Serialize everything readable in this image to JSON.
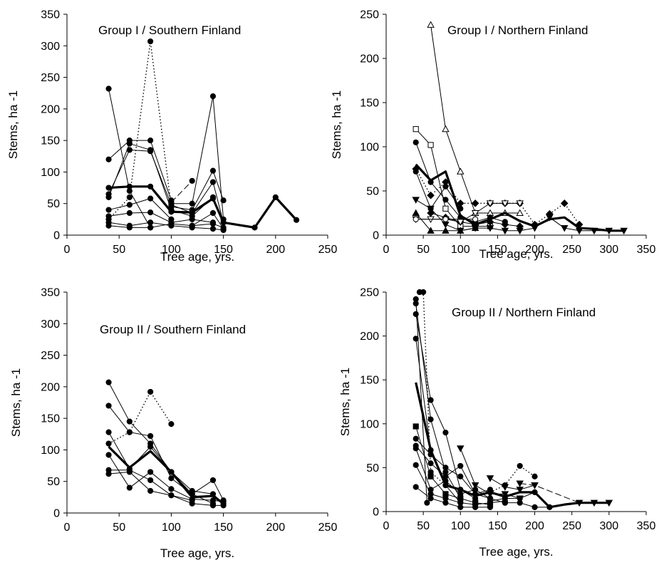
{
  "chart_data": [
    {
      "type": "line",
      "title": "Group I / Southern Finland",
      "xlabel": "Tree age, yrs.",
      "ylabel": "Stems, ha -1",
      "xlim": [
        0,
        250
      ],
      "ylim": [
        0,
        350
      ],
      "xticks": [
        0,
        50,
        100,
        150,
        200,
        250
      ],
      "yticks": [
        0,
        50,
        100,
        150,
        200,
        250,
        300,
        350
      ],
      "grid": false,
      "series": [
        {
          "style": "thin",
          "marker": "filled-circle",
          "x": [
            40,
            60,
            80
          ],
          "y": [
            232,
            70,
            12
          ]
        },
        {
          "style": "thin",
          "marker": "filled-circle",
          "x": [
            40,
            60,
            80,
            100
          ],
          "y": [
            120,
            150,
            150,
            55
          ]
        },
        {
          "style": "thin",
          "marker": "filled-circle",
          "x": [
            40,
            60,
            80,
            100,
            120
          ],
          "y": [
            65,
            135,
            133,
            48,
            35
          ]
        },
        {
          "style": "thin",
          "marker": "filled-circle",
          "x": [
            40,
            60,
            80,
            100,
            120,
            140
          ],
          "y": [
            60,
            145,
            135,
            40,
            30,
            60
          ]
        },
        {
          "style": "dotted",
          "marker": "filled-circle",
          "x": [
            40,
            60,
            80,
            100
          ],
          "y": [
            25,
            60,
            307,
            45
          ]
        },
        {
          "style": "thin",
          "marker": "filled-circle",
          "x": [
            40,
            60,
            80,
            100
          ],
          "y": [
            40,
            48,
            58,
            25
          ]
        },
        {
          "style": "thin",
          "marker": "filled-circle",
          "x": [
            40,
            60,
            80,
            100,
            120,
            140
          ],
          "y": [
            30,
            35,
            36,
            20,
            25,
            20
          ]
        },
        {
          "style": "thin",
          "marker": "filled-circle",
          "x": [
            40,
            60,
            80,
            100,
            120,
            140,
            150
          ],
          "y": [
            20,
            15,
            20,
            15,
            12,
            10,
            8
          ]
        },
        {
          "style": "thin",
          "marker": "filled-circle",
          "x": [
            40,
            60,
            80,
            100,
            120,
            140,
            150
          ],
          "y": [
            15,
            12,
            12,
            18,
            15,
            18,
            12
          ]
        },
        {
          "style": "thin",
          "marker": "filled-circle",
          "x": [
            100,
            120,
            140,
            150
          ],
          "y": [
            50,
            50,
            220,
            25
          ]
        },
        {
          "style": "thin",
          "marker": "filled-circle",
          "x": [
            100,
            120,
            140,
            150
          ],
          "y": [
            45,
            40,
            102,
            55
          ]
        },
        {
          "style": "thin",
          "marker": "filled-circle",
          "x": [
            120,
            140,
            150
          ],
          "y": [
            35,
            84,
            20
          ]
        },
        {
          "style": "thin",
          "marker": "filled-circle",
          "x": [
            120,
            140,
            150
          ],
          "y": [
            15,
            35,
            10
          ]
        },
        {
          "style": "dashed",
          "marker": "filled-circle",
          "x": [
            100,
            120
          ],
          "y": [
            52,
            86
          ]
        },
        {
          "style": "mean",
          "marker": "filled-circle",
          "x": [
            40,
            60,
            80,
            100,
            120,
            140,
            150,
            180,
            200,
            220
          ],
          "y": [
            75,
            77,
            77,
            37,
            36,
            58,
            20,
            12,
            60,
            24
          ]
        }
      ]
    },
    {
      "type": "line",
      "title": "Group I / Northern Finland",
      "xlabel": "Tree age, yrs.",
      "ylabel": "Stems, ha -1",
      "xlim": [
        0,
        350
      ],
      "ylim": [
        0,
        250
      ],
      "xticks": [
        0,
        50,
        100,
        150,
        200,
        250,
        300,
        350
      ],
      "yticks": [
        0,
        50,
        100,
        150,
        200,
        250
      ],
      "grid": false,
      "series": [
        {
          "style": "thin",
          "marker": "open-triangle",
          "x": [
            60,
            80,
            100,
            120,
            140,
            160,
            180
          ],
          "y": [
            238,
            120,
            72,
            25,
            25,
            25,
            25
          ]
        },
        {
          "style": "thin",
          "marker": "open-square",
          "x": [
            40,
            60,
            80,
            100,
            120,
            140
          ],
          "y": [
            120,
            102,
            30,
            10,
            10,
            10
          ]
        },
        {
          "style": "thin",
          "marker": "filled-circle",
          "x": [
            40,
            60,
            80,
            100,
            120,
            140,
            160
          ],
          "y": [
            105,
            60,
            40,
            20,
            15,
            20,
            15
          ]
        },
        {
          "style": "thin",
          "marker": "filled-circle",
          "x": [
            40,
            60,
            80,
            100
          ],
          "y": [
            72,
            30,
            55,
            30
          ]
        },
        {
          "style": "dotted",
          "marker": "filled-diamond",
          "x": [
            40,
            60,
            80,
            100,
            120,
            140,
            160,
            180,
            200,
            220,
            240,
            260
          ],
          "y": [
            75,
            45,
            60,
            36,
            36,
            36,
            36,
            36,
            12,
            24,
            36,
            12
          ]
        },
        {
          "style": "thin",
          "marker": "filled-diamond",
          "x": [
            60,
            80,
            100,
            120,
            140,
            160,
            180
          ],
          "y": [
            25,
            20,
            15,
            12,
            15,
            12,
            10
          ]
        },
        {
          "style": "thin",
          "marker": "filled-triangle-down",
          "x": [
            40,
            60,
            80,
            100,
            120,
            140,
            160,
            180,
            200,
            220,
            240,
            260,
            280,
            300,
            320
          ],
          "y": [
            40,
            30,
            12,
            5,
            8,
            8,
            5,
            5,
            8,
            20,
            8,
            5,
            5,
            5,
            5
          ]
        },
        {
          "style": "thin",
          "marker": "filled-triangle",
          "x": [
            40,
            60,
            80,
            100,
            120
          ],
          "y": [
            25,
            5,
            5,
            5,
            8
          ]
        },
        {
          "style": "thin",
          "marker": "open-triangle-down",
          "x": [
            40,
            60,
            80,
            100,
            120,
            140,
            160,
            180
          ],
          "y": [
            18,
            18,
            18,
            15,
            25,
            36,
            36,
            36
          ]
        },
        {
          "style": "thin",
          "marker": "open-circle",
          "x": [
            40,
            80,
            120
          ],
          "y": [
            18,
            18,
            18
          ]
        },
        {
          "style": "mean",
          "marker": "none",
          "x": [
            40,
            60,
            80,
            100,
            120,
            140,
            160,
            180,
            200,
            220,
            240,
            260,
            280,
            300,
            320
          ],
          "y": [
            80,
            62,
            72,
            22,
            12,
            18,
            25,
            16,
            10,
            18,
            20,
            8,
            7,
            5,
            5
          ]
        }
      ]
    },
    {
      "type": "line",
      "title": "Group II / Southern Finland",
      "xlabel": "Tree age, yrs.",
      "ylabel": "Stems, ha -1",
      "xlim": [
        0,
        250
      ],
      "ylim": [
        0,
        350
      ],
      "xticks": [
        0,
        50,
        100,
        150,
        200,
        250
      ],
      "yticks": [
        0,
        50,
        100,
        150,
        200,
        250,
        300,
        350
      ],
      "grid": false,
      "series": [
        {
          "style": "thin",
          "marker": "filled-circle",
          "x": [
            40,
            60,
            80,
            100,
            120,
            140,
            150
          ],
          "y": [
            207,
            145,
            110,
            65,
            35,
            30,
            15
          ]
        },
        {
          "style": "thin",
          "marker": "filled-circle",
          "x": [
            40,
            60,
            80,
            100,
            120,
            140,
            150
          ],
          "y": [
            170,
            128,
            122,
            55,
            30,
            52,
            20
          ]
        },
        {
          "style": "thin",
          "marker": "filled-circle",
          "x": [
            40,
            60,
            80,
            100,
            120,
            140
          ],
          "y": [
            128,
            70,
            105,
            65,
            30,
            15
          ]
        },
        {
          "style": "dotted",
          "marker": "filled-circle",
          "x": [
            40,
            60,
            80,
            100
          ],
          "y": [
            110,
            128,
            192,
            141
          ]
        },
        {
          "style": "thin",
          "marker": "filled-circle",
          "x": [
            40,
            60,
            80,
            100,
            120,
            140,
            150
          ],
          "y": [
            92,
            40,
            65,
            38,
            22,
            20,
            18
          ]
        },
        {
          "style": "thin",
          "marker": "filled-circle",
          "x": [
            40,
            60,
            80,
            100,
            120,
            140,
            150
          ],
          "y": [
            68,
            68,
            52,
            28,
            15,
            12,
            12
          ]
        },
        {
          "style": "thin",
          "marker": "filled-circle",
          "x": [
            40,
            60,
            80,
            100,
            120
          ],
          "y": [
            62,
            65,
            35,
            28,
            20
          ]
        },
        {
          "style": "mean",
          "marker": "none",
          "x": [
            40,
            60,
            80,
            100,
            120,
            140,
            150
          ],
          "y": [
            105,
            72,
            98,
            65,
            25,
            27,
            15
          ]
        }
      ]
    },
    {
      "type": "line",
      "title": "Group II / Northern Finland",
      "xlabel": "Tree age, yrs.",
      "ylabel": "Stems, ha -1",
      "xlim": [
        0,
        350
      ],
      "ylim": [
        0,
        250
      ],
      "xticks": [
        0,
        50,
        100,
        150,
        200,
        250,
        300,
        350
      ],
      "yticks": [
        0,
        50,
        100,
        150,
        200,
        250
      ],
      "grid": false,
      "series": [
        {
          "style": "thin",
          "marker": "filled-circle",
          "x": [
            40,
            55
          ],
          "y": [
            242,
            10
          ]
        },
        {
          "style": "thin",
          "marker": "filled-circle",
          "x": [
            40,
            60,
            80,
            100
          ],
          "y": [
            237,
            105,
            45,
            15
          ]
        },
        {
          "style": "thin",
          "marker": "filled-circle",
          "x": [
            40,
            60,
            80,
            100,
            120
          ],
          "y": [
            225,
            127,
            90,
            25,
            15
          ]
        },
        {
          "style": "thin",
          "marker": "filled-circle",
          "x": [
            40,
            60,
            80,
            100
          ],
          "y": [
            197,
            70,
            30,
            10
          ]
        },
        {
          "style": "dotted",
          "marker": "filled-circle",
          "x": [
            45,
            50,
            60,
            80
          ],
          "y": [
            250,
            250,
            45,
            30
          ]
        },
        {
          "style": "thin",
          "marker": "filled-square",
          "x": [
            40,
            60,
            80,
            100,
            120,
            140
          ],
          "y": [
            97,
            40,
            20,
            15,
            10,
            8
          ]
        },
        {
          "style": "thin",
          "marker": "filled-circle",
          "x": [
            40,
            60,
            80,
            100,
            120,
            140,
            160
          ],
          "y": [
            83,
            65,
            50,
            40,
            20,
            15,
            10
          ]
        },
        {
          "style": "thin",
          "marker": "filled-circle",
          "x": [
            40,
            60,
            80,
            100,
            120,
            140
          ],
          "y": [
            75,
            55,
            40,
            52,
            20,
            25
          ]
        },
        {
          "style": "thin",
          "marker": "filled-circle",
          "x": [
            40,
            60,
            80,
            100,
            120,
            140
          ],
          "y": [
            72,
            25,
            35,
            20,
            25,
            15
          ]
        },
        {
          "style": "thin",
          "marker": "filled-circle",
          "x": [
            40,
            60,
            80,
            100,
            120,
            140,
            160
          ],
          "y": [
            53,
            20,
            15,
            10,
            8,
            10,
            12
          ]
        },
        {
          "style": "thin",
          "marker": "filled-circle",
          "x": [
            40,
            60,
            80,
            100,
            120,
            140
          ],
          "y": [
            28,
            15,
            10,
            5,
            5,
            5
          ]
        },
        {
          "style": "thin",
          "marker": "filled-triangle-down",
          "x": [
            100,
            120,
            140,
            160,
            180
          ],
          "y": [
            72,
            30,
            20,
            20,
            15
          ]
        },
        {
          "style": "thin",
          "marker": "filled-triangle-down",
          "x": [
            140,
            160,
            180,
            200
          ],
          "y": [
            38,
            28,
            25,
            30
          ]
        },
        {
          "style": "dotted",
          "marker": "filled-circle",
          "x": [
            140,
            160,
            180,
            200
          ],
          "y": [
            22,
            30,
            52,
            40
          ]
        },
        {
          "style": "dashed",
          "marker": "filled-triangle-down",
          "x": [
            180,
            200,
            260,
            280,
            300
          ],
          "y": [
            32,
            30,
            10,
            10,
            10
          ]
        },
        {
          "style": "thin",
          "marker": "filled-circle",
          "x": [
            160,
            180,
            200,
            220
          ],
          "y": [
            10,
            10,
            5,
            5
          ]
        },
        {
          "style": "thin",
          "marker": "filled-circle",
          "x": [
            140,
            160,
            180,
            200
          ],
          "y": [
            12,
            15,
            15,
            22
          ]
        },
        {
          "style": "mean",
          "marker": "none",
          "x": [
            40,
            60,
            80,
            100,
            120,
            140,
            160,
            180,
            200,
            220,
            240,
            260,
            280,
            300
          ],
          "y": [
            147,
            70,
            30,
            25,
            18,
            22,
            17,
            22,
            22,
            5,
            8,
            10,
            10,
            10
          ]
        }
      ]
    }
  ]
}
